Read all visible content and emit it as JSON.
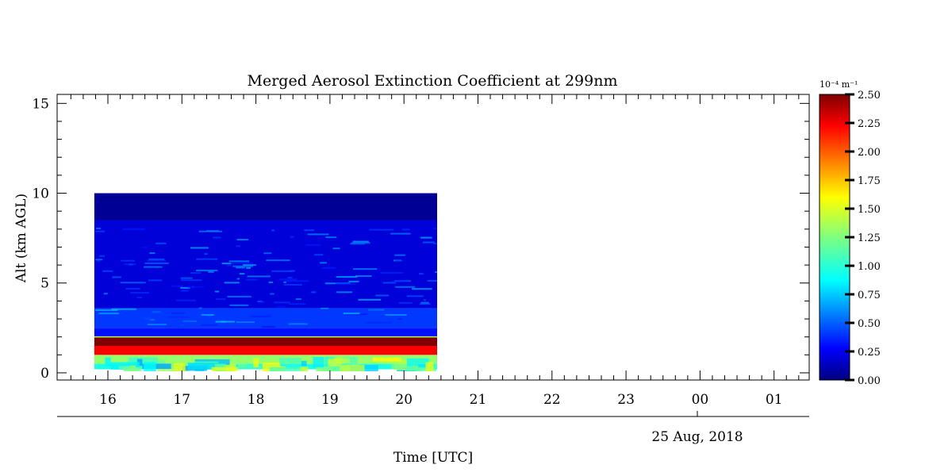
{
  "chart_data": {
    "type": "heatmap",
    "title": "Merged Aerosol Extinction Coefficient at 299nm",
    "xlabel": "Time [UTC]",
    "ylabel": "Alt (km AGL)",
    "date_label": "25 Aug, 2018",
    "x_tick_labels": [
      "16",
      "17",
      "18",
      "19",
      "20",
      "21",
      "22",
      "23",
      "00",
      "01"
    ],
    "y_tick_labels": [
      "0",
      "5",
      "10",
      "15"
    ],
    "y_ticks": [
      0,
      5,
      10,
      15
    ],
    "ylim": [
      -0.4,
      15.5
    ],
    "colorbar": {
      "unit_label": "10⁻⁴ m⁻¹",
      "range": [
        0,
        2.5
      ],
      "tick_labels": [
        "0.00",
        "0.25",
        "0.50",
        "0.75",
        "1.00",
        "1.25",
        "1.50",
        "1.75",
        "2.00",
        "2.25",
        "2.50"
      ],
      "colormap": "jet"
    },
    "data_extent": {
      "x_start": "15:49",
      "x_end": "20:28",
      "alt_min": 0.2,
      "alt_max": 10.0
    },
    "layers": [
      {
        "alt_range": [
          0.2,
          0.5
        ],
        "value": 1.0
      },
      {
        "alt_range": [
          0.5,
          1.0
        ],
        "value": 1.3
      },
      {
        "alt_range": [
          1.0,
          1.5
        ],
        "value": 2.2
      },
      {
        "alt_range": [
          1.5,
          2.0
        ],
        "value": 2.5
      },
      {
        "alt_range": [
          2.0,
          2.5
        ],
        "value": 0.35
      },
      {
        "alt_range": [
          2.5,
          3.6
        ],
        "value": 0.45
      },
      {
        "alt_range": [
          3.6,
          8.5
        ],
        "value": 0.22
      },
      {
        "alt_range": [
          8.5,
          10.0
        ],
        "value": 0.05
      }
    ]
  }
}
